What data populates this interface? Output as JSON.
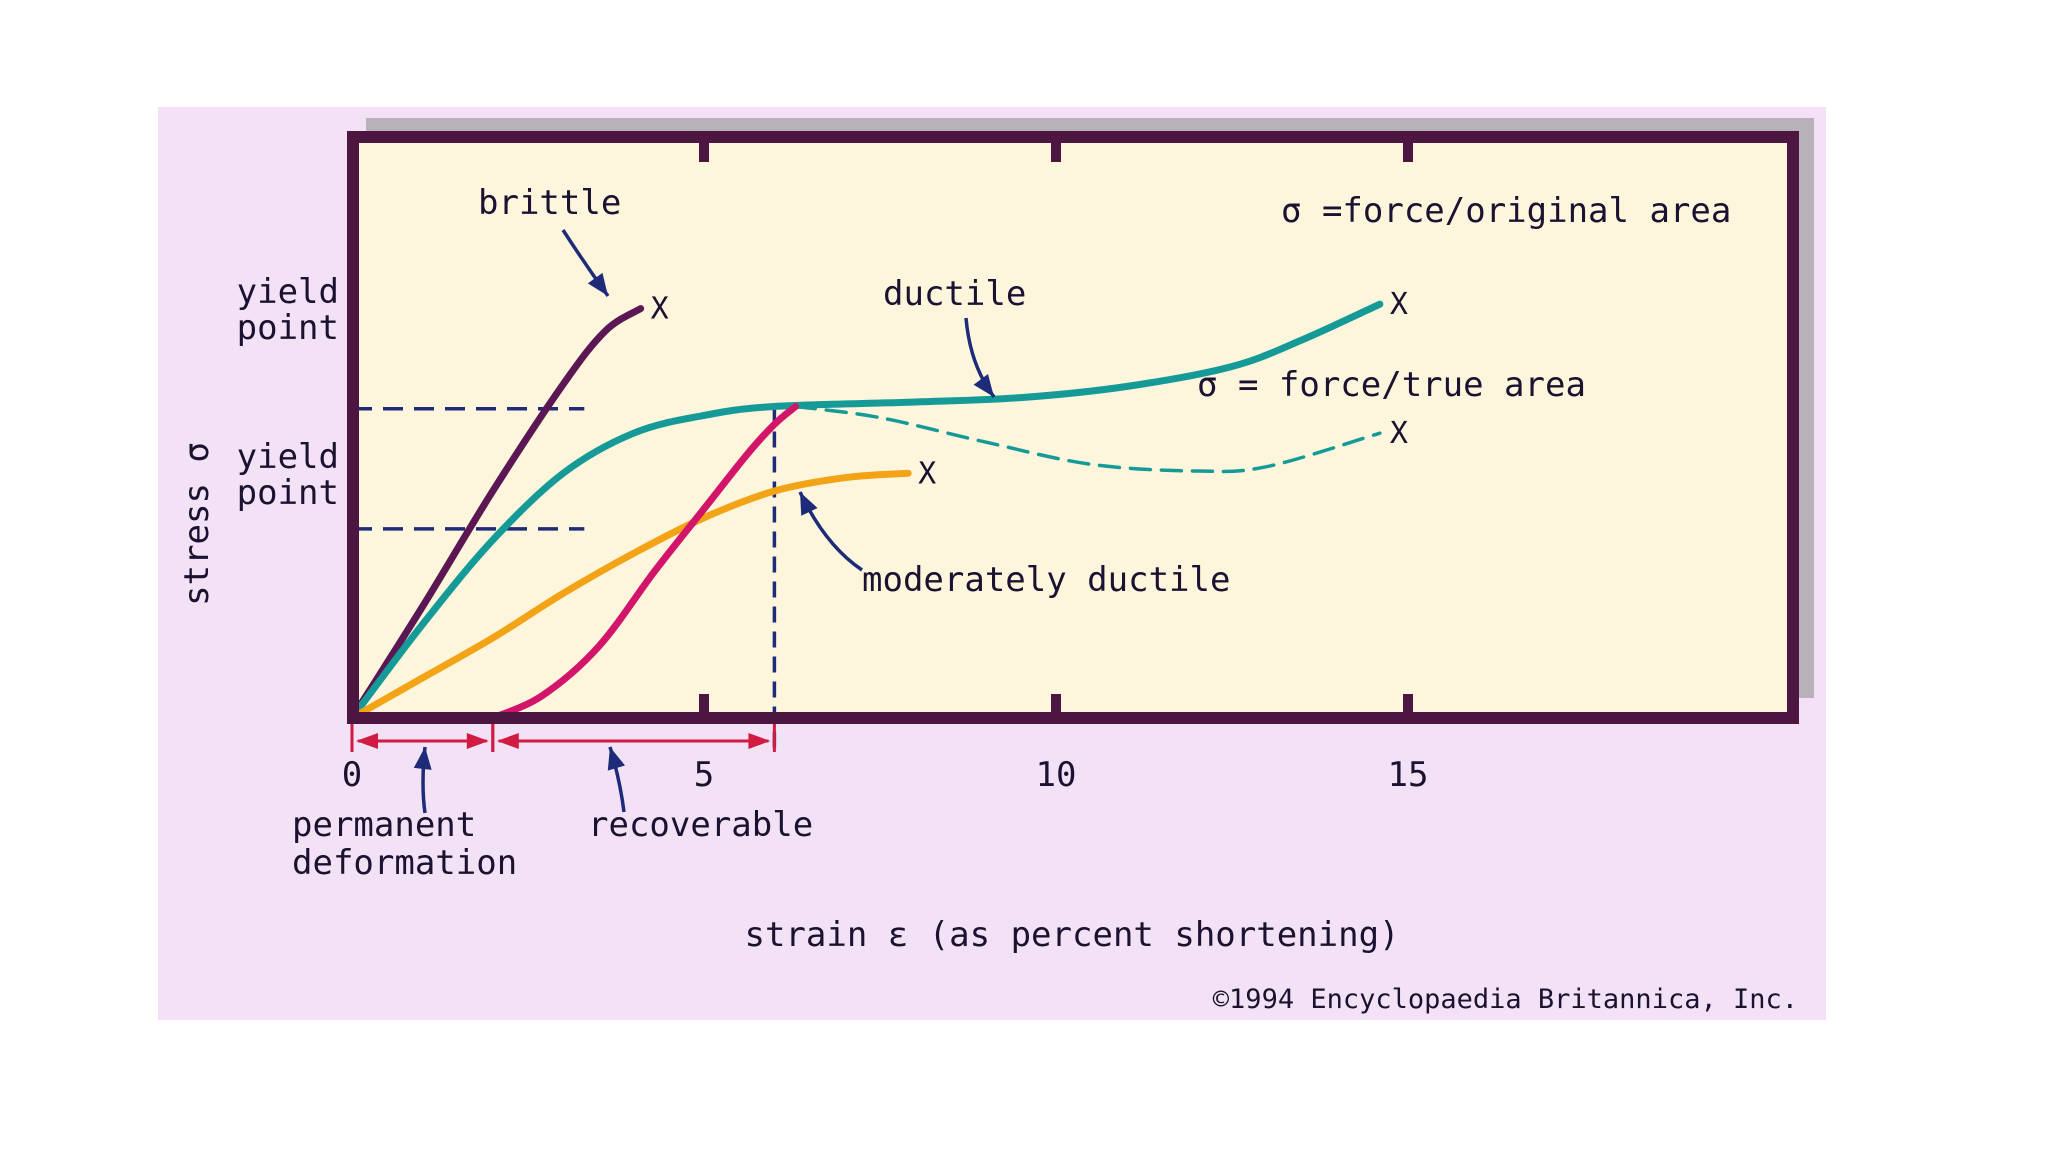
{
  "colors": {
    "background": "#f3e2f5",
    "plot_area": "#fdf6dc",
    "frame": "#4d1640",
    "shadow": "#b7b1b9",
    "brittle": "#5b1753",
    "ductile": "#169a98",
    "moderately_ductile": "#f3a316",
    "recoverable": "#d2156a",
    "guides": "#1e2b78",
    "range_bar": "#d21b42"
  },
  "chart_data": {
    "type": "line",
    "xlabel": "strain ε (as percent shortening)",
    "ylabel": "stress σ",
    "xlim": [
      0,
      20.5
    ],
    "ylim": [
      0,
      100
    ],
    "x_ticks": [
      0,
      5,
      10,
      15
    ],
    "x_tick_labels": [
      "0",
      "5",
      "10",
      "15"
    ],
    "y_ticks": [],
    "grid": false,
    "series": [
      {
        "name": "brittle",
        "color_key": "brittle",
        "style": "solid",
        "points": [
          [
            0,
            0
          ],
          [
            1,
            25
          ],
          [
            2,
            51
          ],
          [
            3,
            75
          ],
          [
            3.6,
            87
          ],
          [
            4.1,
            92
          ]
        ],
        "end_marker": "X"
      },
      {
        "name": "ductile",
        "color_key": "ductile",
        "style": "solid",
        "points": [
          [
            0,
            0
          ],
          [
            1,
            21
          ],
          [
            2,
            40
          ],
          [
            3,
            55
          ],
          [
            4,
            64
          ],
          [
            5,
            68
          ],
          [
            6,
            70
          ],
          [
            8,
            71
          ],
          [
            9.5,
            72
          ],
          [
            11,
            74.5
          ],
          [
            12.5,
            79
          ],
          [
            13.5,
            85
          ],
          [
            14.6,
            93
          ]
        ],
        "end_marker": "X",
        "end_label": "σ =force/original area"
      },
      {
        "name": "σ = force/true area",
        "color_key": "ductile",
        "style": "dashed",
        "points": [
          [
            6.3,
            70
          ],
          [
            7.5,
            67.5
          ],
          [
            9,
            62
          ],
          [
            10.5,
            57
          ],
          [
            12,
            55.5
          ],
          [
            13,
            56.5
          ],
          [
            14.6,
            64
          ]
        ],
        "end_marker": "X"
      },
      {
        "name": "moderately ductile",
        "color_key": "moderately_ductile",
        "style": "solid",
        "points": [
          [
            0,
            0
          ],
          [
            1,
            9
          ],
          [
            2,
            18
          ],
          [
            3,
            28
          ],
          [
            4,
            37
          ],
          [
            5,
            45
          ],
          [
            6,
            51
          ],
          [
            7,
            54
          ],
          [
            7.9,
            55
          ]
        ],
        "end_marker": "X"
      },
      {
        "name": "recoverable",
        "color_key": "recoverable",
        "style": "solid",
        "points": [
          [
            2,
            0
          ],
          [
            2.7,
            5
          ],
          [
            3.5,
            16
          ],
          [
            4.3,
            33
          ],
          [
            5,
            47
          ],
          [
            5.6,
            59
          ],
          [
            6,
            66
          ],
          [
            6.3,
            70
          ]
        ],
        "end_marker": ""
      }
    ],
    "yield_points": [
      {
        "label_line1": "yield",
        "label_line2": "point",
        "stress": 69.5,
        "strain_end": 3.3
      },
      {
        "label_line1": "yield",
        "label_line2": "point",
        "stress": 42.5,
        "strain_end": 3.3
      }
    ],
    "strain_guide": {
      "strain": 6.0,
      "stress_top": 70
    },
    "ranges": [
      {
        "from": 0,
        "to": 2,
        "label": "permanent deformation",
        "label_line1": "permanent",
        "label_line2": "deformation"
      },
      {
        "from": 2,
        "to": 6,
        "label": "recoverable",
        "label_line1": "recoverable",
        "label_line2": ""
      }
    ],
    "annotations": [
      {
        "text": "brittle",
        "target": [
          3.6,
          72
        ],
        "from": [
          3.05,
          85
        ]
      },
      {
        "text": "ductile",
        "target": [
          9.1,
          71
        ],
        "from": [
          8.75,
          69
        ]
      },
      {
        "text": "σ = force/true area",
        "target": null,
        "from": null
      },
      {
        "text": "moderately ductile",
        "target": [
          6.4,
          45
        ],
        "from": [
          7.2,
          28
        ]
      }
    ],
    "end_marker_text": "X"
  },
  "copyright": "©1994 Encyclopaedia Britannica, Inc."
}
